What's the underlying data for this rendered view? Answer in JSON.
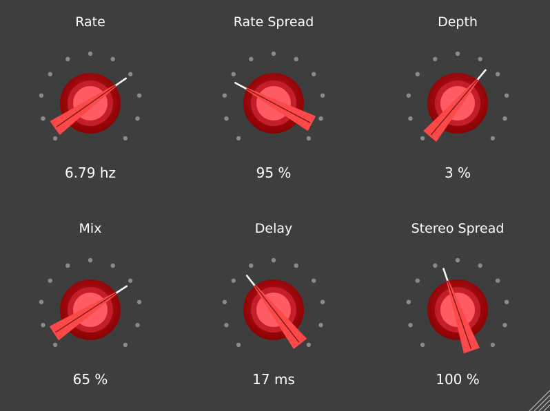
{
  "theme": {
    "background": "#3e3e3e",
    "dial_outer": "#8b0000",
    "dial_mid": "#c41e2a",
    "dial_inner": "#ff5c63",
    "pointer": "#ff4848",
    "tick_dots": "#8a8a8a"
  },
  "knobs": [
    {
      "id": "rate",
      "label": "Rate",
      "value": "6.79 hz",
      "angle_deg": 235
    },
    {
      "id": "rate-spread",
      "label": "Rate Spread",
      "value": "95 %",
      "angle_deg": 118
    },
    {
      "id": "depth",
      "label": "Depth",
      "value": "3 %",
      "angle_deg": 220
    },
    {
      "id": "mix",
      "label": "Mix",
      "value": "65 %",
      "angle_deg": 237
    },
    {
      "id": "delay",
      "label": "Delay",
      "value": "17 ms",
      "angle_deg": 142
    },
    {
      "id": "stereo-spread",
      "label": "Stereo Spread",
      "value": "100 %",
      "angle_deg": 161
    }
  ],
  "resize_grip_icon": "resize-grip-icon"
}
